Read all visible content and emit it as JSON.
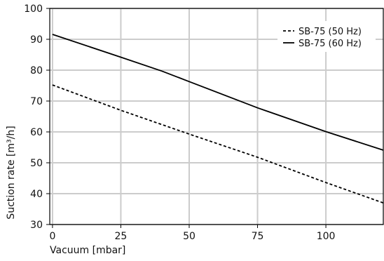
{
  "chart_data": {
    "type": "line",
    "xlabel": "Vacuum [mbar]",
    "ylabel": "Suction rate [m³/h]",
    "xlim": [
      -1,
      121
    ],
    "ylim": [
      30,
      100
    ],
    "x_ticks": [
      0,
      25,
      50,
      75,
      100
    ],
    "y_ticks": [
      30,
      40,
      50,
      60,
      70,
      80,
      90,
      100
    ],
    "grid": true,
    "legend_position": "top-right",
    "series": [
      {
        "name": "SB-75 (50 Hz)",
        "line_style": "dashed",
        "color": "#000000",
        "x": [
          0,
          25,
          50,
          75,
          100,
          121
        ],
        "y": [
          75.2,
          67.0,
          59.3,
          51.8,
          43.6,
          37.0
        ]
      },
      {
        "name": "SB-75 (60 Hz)",
        "line_style": "solid",
        "color": "#000000",
        "x": [
          0,
          25,
          40,
          50,
          75,
          100,
          121
        ],
        "y": [
          91.6,
          84.2,
          79.7,
          76.3,
          67.8,
          60.1,
          54.1
        ]
      }
    ]
  }
}
